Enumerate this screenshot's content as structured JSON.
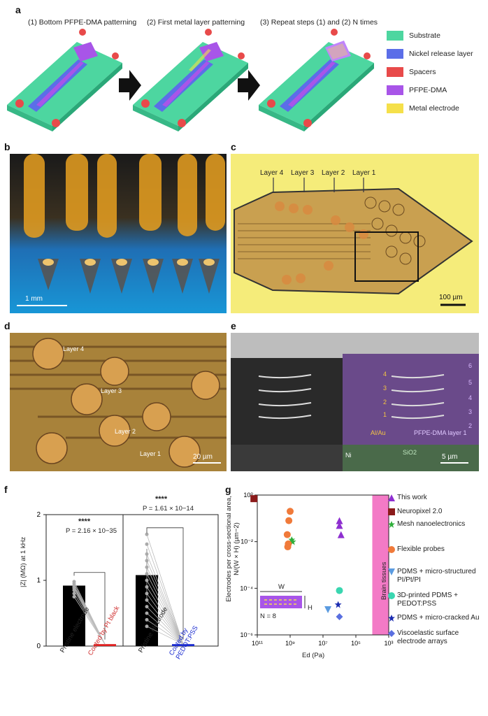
{
  "panel_a": {
    "label": "a",
    "steps": [
      "(1) Bottom PFPE-DMA patterning",
      "(2) First metal layer patterning",
      "(3) Repeat steps (1) and (2) N times"
    ],
    "legend": [
      {
        "label": "Substrate",
        "color": "#4dd6a0"
      },
      {
        "label": "Nickel release layer",
        "color": "#5b6ee8"
      },
      {
        "label": "Spacers",
        "color": "#e84a4a"
      },
      {
        "label": "PFPE-DMA",
        "color": "#a855e8"
      },
      {
        "label": "Metal electrode",
        "color": "#f5e04a"
      }
    ]
  },
  "panel_b": {
    "label": "b",
    "scale": "1 mm"
  },
  "panel_c": {
    "label": "c",
    "layers": [
      "Layer 4",
      "Layer 3",
      "Layer 2",
      "Layer 1"
    ],
    "scale": "100 µm"
  },
  "panel_d": {
    "label": "d",
    "layers": [
      "Layer 4",
      "Layer 3",
      "Layer 2",
      "Layer 1"
    ],
    "scale": "20 µm"
  },
  "panel_e": {
    "label": "e",
    "left_numbers": [
      "4",
      "3",
      "2",
      "1"
    ],
    "right_numbers": [
      "6",
      "5",
      "4",
      "3",
      "2"
    ],
    "metal_label": "Al/Au",
    "layer_label": "PFPE-DMA layer 1",
    "ni_label": "Ni",
    "sio2_label": "SiO2",
    "scale": "5 µm"
  },
  "panel_f": {
    "label": "f",
    "ylabel": "|Z| (MΩ) at 1 kHz",
    "yticks": [
      "0",
      "1",
      "2"
    ],
    "left": {
      "sig": "****",
      "p": "P = 2.16 × 10−35",
      "cat1": "Pristine electrode",
      "cat2": "Coated by Pt black"
    },
    "right": {
      "sig": "****",
      "p": "P = 1.61 × 10−14",
      "cat1": "Pristine electrode",
      "cat2": "Coated by PEDOT:PSS"
    }
  },
  "panel_g": {
    "label": "g",
    "ylabel": "Electrodes per cross-sectional area, N/(W × H) (µm−2)",
    "xlabel": "Ed (Pa)",
    "xticks": [
      "10¹¹",
      "10⁹",
      "10⁷",
      "10⁵",
      "10³"
    ],
    "yticks": [
      "10⁰",
      "10⁻²",
      "10⁻⁴",
      "10⁻⁶"
    ],
    "brain_label": "Brain tissues",
    "inset": {
      "w": "W",
      "h": "H",
      "n": "N = 8"
    },
    "legend": [
      {
        "label": "This work",
        "color": "#8e2fd0"
      },
      {
        "label": "Neuropixel 2.0",
        "color": "#8b1a1a"
      },
      {
        "label": "Mesh nanoelectronics",
        "color": "#2fae3a"
      },
      {
        "label": "Flexible probes",
        "color": "#f07a3a"
      },
      {
        "label": "PDMS + micro-structured PI/Pt/PI",
        "color": "#5b9be0"
      },
      {
        "label": "3D-printed PDMS + PEDOT:PSS",
        "color": "#3ad6b0"
      },
      {
        "label": "PDMS + micro-cracked Au",
        "color": "#1a2bb0"
      },
      {
        "label": "Viscoelastic surface electrode arrays",
        "color": "#5a6fe0"
      }
    ]
  },
  "chart_data": [
    {
      "type": "bar",
      "categories": [
        "Pristine electrode",
        "Coated by Pt black",
        "Pristine electrode",
        "Coated by PEDOT:PSS"
      ],
      "values": [
        0.92,
        0.03,
        1.08,
        0.03
      ],
      "ylabel": "|Z| (MΩ) at 1 kHz",
      "ylim": [
        0,
        2
      ]
    },
    {
      "type": "scatter",
      "xlabel": "Ed (Pa)",
      "ylabel": "Electrodes per cross-sectional area, N/(W × H) (µm−2)",
      "xscale": "log-reversed",
      "yscale": "log",
      "xlim": [
        100000000000.0,
        1000.0
      ],
      "ylim": [
        1e-06,
        1
      ],
      "series": [
        {
          "name": "This work",
          "x": [
            1000000.0,
            800000.0,
            1000000.0
          ],
          "y": [
            0.05,
            0.02,
            0.08
          ]
        },
        {
          "name": "Neuropixel 2.0",
          "x": [
            160000000000.0
          ],
          "y": [
            0.7
          ]
        },
        {
          "name": "Mesh nanoelectronics",
          "x": [
            800000000.0,
            700000000.0
          ],
          "y": [
            0.012,
            0.01
          ]
        },
        {
          "name": "Flexible probes",
          "x": [
            1500000000.0,
            1300000000.0,
            1400000000.0,
            1200000000.0,
            1000000000.0
          ],
          "y": [
            0.02,
            0.008,
            0.006,
            0.08,
            0.2
          ]
        },
        {
          "name": "PDMS + micro-structured PI/Pt/PI",
          "x": [
            5000000.0
          ],
          "y": [
            1.2e-05
          ]
        },
        {
          "name": "3D-printed PDMS + PEDOT:PSS",
          "x": [
            1000000.0
          ],
          "y": [
            8e-05
          ]
        },
        {
          "name": "PDMS + micro-cracked Au",
          "x": [
            1200000.0
          ],
          "y": [
            2e-05
          ]
        },
        {
          "name": "Viscoelastic surface electrode arrays",
          "x": [
            1000000.0
          ],
          "y": [
            6e-06
          ]
        }
      ]
    }
  ]
}
